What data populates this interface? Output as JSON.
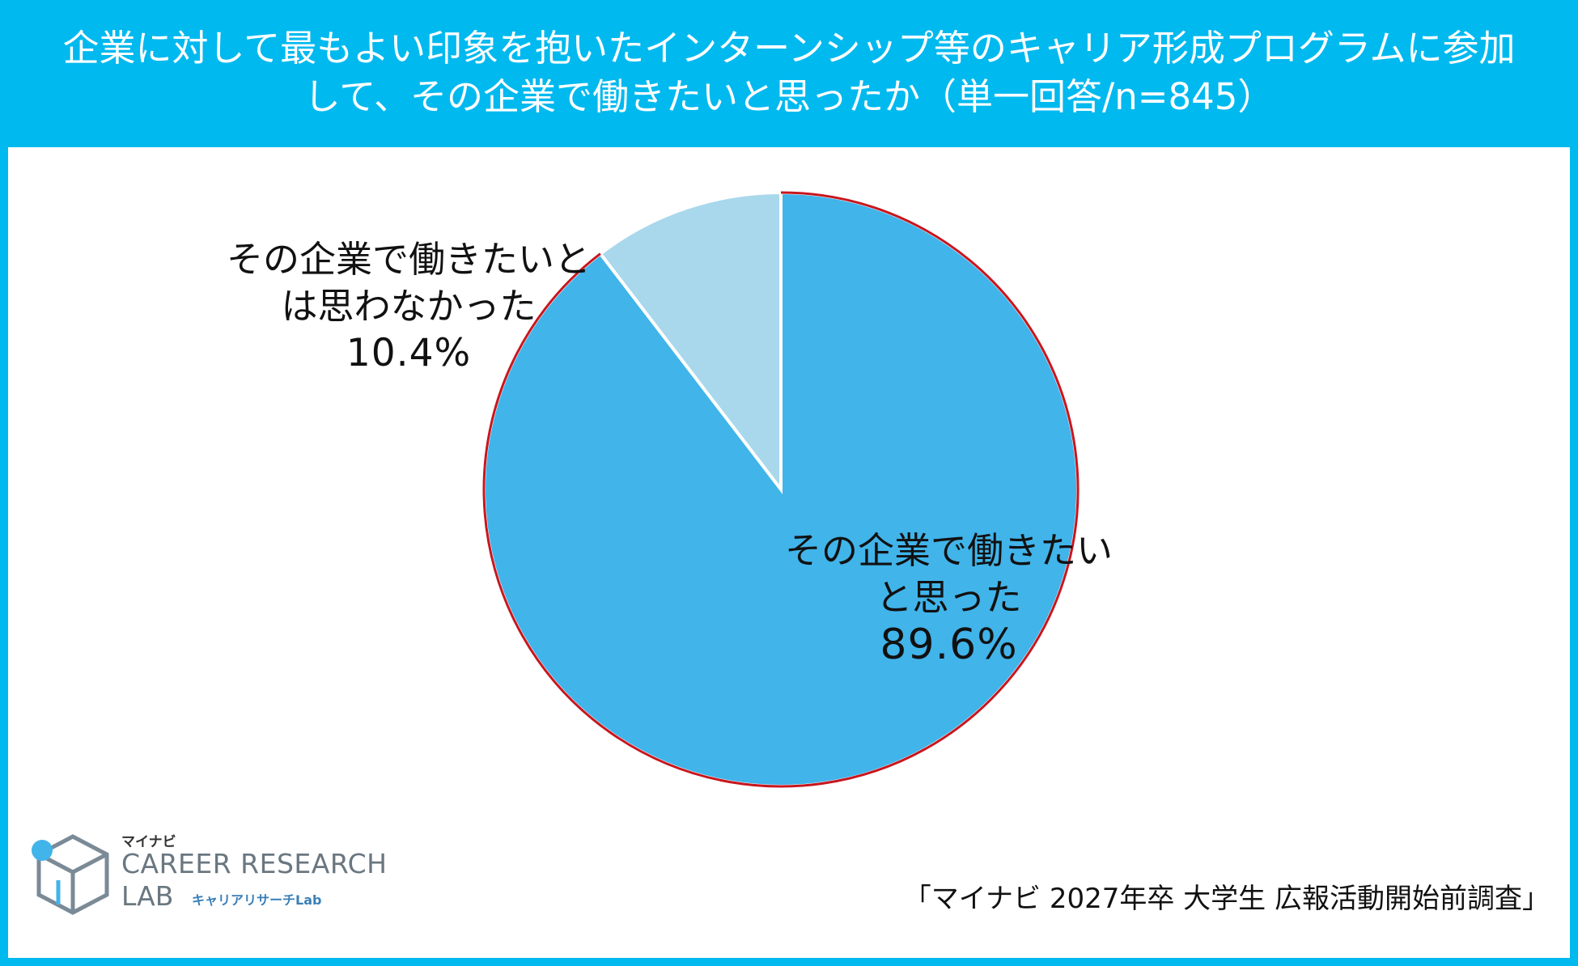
{
  "header": {
    "title_line1": "企業に対して最もよい印象を抱いたインターンシップ等のキャリア形成プログラムに参加",
    "title_line2": "して、その企業で働きたいと思ったか（単一回答/n=845）"
  },
  "chart_data": {
    "type": "pie",
    "title": "企業に対して最もよい印象を抱いたインターンシップ等のキャリア形成プログラムに参加して、その企業で働きたいと思ったか（単一回答/n=845）",
    "slices": [
      {
        "label_lines": [
          "その企業で働きたいと",
          "は思わなかった"
        ],
        "value": 10.4,
        "value_label": "10.4%",
        "color": "#a9d8ec"
      },
      {
        "label_lines": [
          "その企業で働きたい",
          "と思った"
        ],
        "value": 89.6,
        "value_label": "89.6%",
        "color": "#41b4ea"
      }
    ],
    "start_angle": "12 o'clock",
    "direction": "counterclockwise from top for first slice",
    "outline_color": "#c8161d"
  },
  "source": "「マイナビ 2027年卒 大学生 広報活動開始前調査」",
  "logo": {
    "brand_jp": "マイナビ",
    "line1": "CAREER RESEARCH",
    "line2": "LAB",
    "sub": "キャリアリサーチLab"
  },
  "colors": {
    "header_bg": "#00b9ef",
    "accent": "#3a7fb8"
  }
}
